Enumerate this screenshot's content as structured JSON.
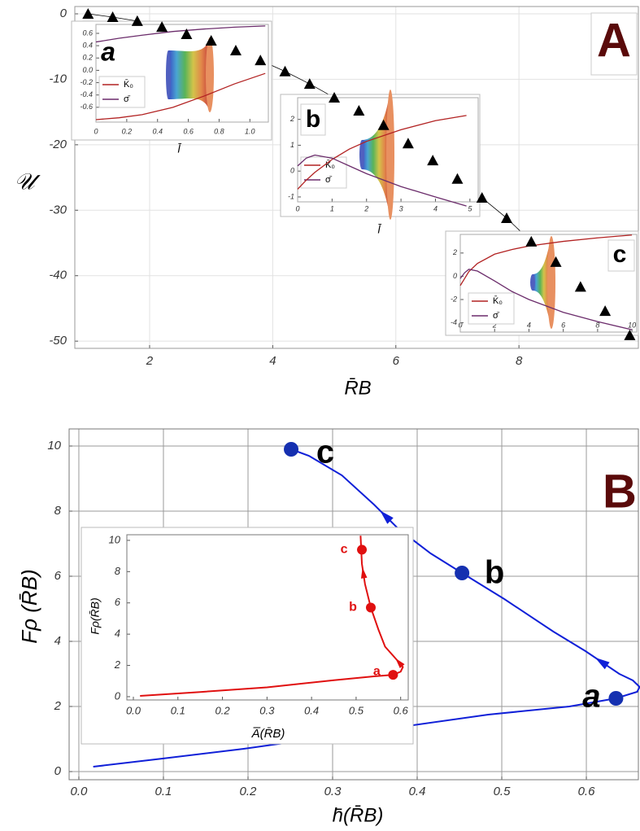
{
  "chart_data": [
    {
      "type": "line",
      "panel_label": "A",
      "xlabel": "R̄B",
      "ylabel": "𝒰",
      "xlim": [
        0.785,
        9.94
      ],
      "ylim": [
        -51.1,
        1.12
      ],
      "xticks": [
        2,
        4,
        6,
        8
      ],
      "yticks": [
        0,
        -10,
        -20,
        -30,
        -40,
        -50
      ],
      "grid": true,
      "series": [
        {
          "color": "#000000",
          "marker": "triangle",
          "x": [
            1,
            1.4,
            1.8,
            2.2,
            2.6,
            3,
            3.4,
            3.8,
            4.2,
            4.6,
            5,
            5.4,
            5.8,
            6.2,
            6.6,
            7,
            7.4,
            7.8,
            8.2,
            8.6,
            9,
            9.4,
            9.8
          ],
          "values": [
            0,
            -0.5,
            -1.1,
            -2,
            -3.1,
            -4.1,
            -5.6,
            -7.1,
            -8.8,
            -10.7,
            -12.8,
            -14.8,
            -17,
            -19.8,
            -22.4,
            -25.2,
            -28.1,
            -31.2,
            -34.8,
            -37.9,
            -41.7,
            -45.4,
            -49.1
          ]
        }
      ]
    },
    {
      "type": "line",
      "label": "a",
      "xlabel": "l̄",
      "xlim": [
        0,
        1.12
      ],
      "ylim": [
        -0.84,
        0.745
      ],
      "xticks": [
        0,
        0.2,
        0.4,
        0.6,
        0.8,
        {
          "value": 1,
          "label": "1.0"
        }
      ],
      "yticks": [
        0.6,
        0.4,
        0.2,
        {
          "value": 0,
          "label": "0.0"
        },
        -0.2,
        -0.4,
        -0.6
      ],
      "series": [
        {
          "name": "K̄₀",
          "color": "#b22222",
          "x": [
            0,
            0.15,
            0.3,
            0.5,
            0.7,
            0.9,
            1.1
          ],
          "values": [
            -0.8,
            -0.77,
            -0.72,
            -0.6,
            -0.42,
            -0.22,
            -0.05
          ]
        },
        {
          "name": "σ̄",
          "color": "#6b2c6b",
          "x": [
            0,
            0.15,
            0.3,
            0.5,
            0.7,
            0.9,
            1.1
          ],
          "values": [
            0.46,
            0.52,
            0.57,
            0.63,
            0.67,
            0.7,
            0.72
          ]
        }
      ]
    },
    {
      "type": "line",
      "label": "b",
      "xlabel": "l̄",
      "xlim": [
        0,
        5.24
      ],
      "ylim": [
        -1.19,
        2.84
      ],
      "xticks": [
        0,
        1,
        2,
        3,
        4,
        5
      ],
      "yticks": [
        -1,
        0,
        1,
        2
      ],
      "series": [
        {
          "name": "K̄₀",
          "color": "#b22222",
          "x": [
            0,
            0.25,
            0.5,
            1,
            1.5,
            2,
            3,
            4,
            4.9
          ],
          "values": [
            -0.7,
            -0.35,
            -0.05,
            0.45,
            0.85,
            1.15,
            1.6,
            1.95,
            2.15
          ]
        },
        {
          "name": "σ̄",
          "color": "#6b2c6b",
          "x": [
            0,
            0.25,
            0.5,
            1,
            1.5,
            2,
            3,
            4,
            4.9
          ],
          "values": [
            0.2,
            0.5,
            0.62,
            0.5,
            0.2,
            -0.1,
            -0.6,
            -1,
            -1.35
          ]
        }
      ]
    },
    {
      "type": "line",
      "label": "c",
      "xlim": [
        0,
        10.28
      ],
      "ylim": [
        -4.8,
        3.6
      ],
      "xticks": [
        0,
        2,
        4,
        6,
        8,
        10
      ],
      "yticks": [
        2,
        0,
        -2,
        -4
      ],
      "series": [
        {
          "name": "K̄₀",
          "color": "#b22222",
          "x": [
            0,
            0.25,
            0.5,
            1,
            2,
            3,
            4,
            6,
            8,
            10
          ],
          "values": [
            -0.8,
            -0.2,
            0.4,
            1.1,
            1.9,
            2.3,
            2.6,
            3,
            3.3,
            3.55
          ]
        },
        {
          "name": "σ̄",
          "color": "#6b2c6b",
          "x": [
            0,
            0.25,
            0.5,
            1,
            2,
            3,
            4,
            6,
            8,
            10
          ],
          "values": [
            -0.2,
            0.3,
            0.6,
            0.45,
            -0.4,
            -1.3,
            -2,
            -3.1,
            -3.9,
            -4.6
          ]
        }
      ]
    },
    {
      "type": "line",
      "panel_label": "B",
      "xlabel": "h̄(R̄B)",
      "ylabel": "Fρ (R̄B)",
      "xlim": [
        -0.0115,
        0.6615
      ],
      "ylim": [
        -0.25,
        10.525
      ],
      "xticks": [
        {
          "value": 0,
          "label": "0.0"
        },
        0.1,
        0.2,
        0.3,
        0.4,
        0.5,
        0.6
      ],
      "yticks": [
        0,
        2,
        4,
        6,
        8,
        10
      ],
      "grid": true,
      "series": [
        {
          "color": "#1020d8",
          "x": [
            0.017,
            0.099,
            0.195,
            0.291,
            0.388,
            0.484,
            0.58,
            0.635,
            0.66,
            0.663,
            0.655,
            0.639,
            0.599,
            0.561,
            0.503,
            0.453,
            0.416,
            0.378,
            0.349,
            0.311,
            0.272,
            0.251
          ],
          "values": [
            0.15,
            0.4,
            0.7,
            1.05,
            1.4,
            1.75,
            2,
            2.25,
            2.45,
            2.6,
            2.8,
            3,
            3.7,
            4.3,
            5.3,
            6.1,
            6.7,
            7.45,
            8.2,
            9.1,
            9.7,
            9.9
          ]
        }
      ],
      "points": {
        "color": "#1530b0",
        "labels": [
          "a",
          "b",
          "c"
        ],
        "x": [
          0.635,
          0.453,
          0.251
        ],
        "values": [
          2.25,
          6.1,
          9.9
        ]
      }
    },
    {
      "type": "line",
      "xlabel": "A̅(R̄B)",
      "ylabel": "Fρ(R̄B)",
      "xlim": [
        -0.0146,
        0.617
      ],
      "ylim": [
        -0.21,
        10.36
      ],
      "xticks": [
        {
          "value": 0,
          "label": "0.0"
        },
        0.1,
        0.2,
        0.3,
        0.4,
        0.5,
        0.6
      ],
      "yticks": [
        0,
        2,
        4,
        6,
        8,
        10
      ],
      "series": [
        {
          "color": "#e01010",
          "x": [
            0.015,
            0.15,
            0.3,
            0.45,
            0.54,
            0.583,
            0.6,
            0.605,
            0.59,
            0.565,
            0.55,
            0.533,
            0.52,
            0.513,
            0.51
          ],
          "values": [
            0.05,
            0.3,
            0.6,
            1.05,
            1.3,
            1.4,
            1.6,
            1.9,
            2.4,
            3.2,
            4.3,
            5.7,
            7.2,
            8.5,
            10.3
          ]
        }
      ],
      "points": {
        "color": "#e01010",
        "labels": [
          "a",
          "b",
          "c"
        ],
        "x": [
          0.583,
          0.533,
          0.513
        ],
        "values": [
          1.4,
          5.7,
          9.4
        ]
      }
    }
  ]
}
